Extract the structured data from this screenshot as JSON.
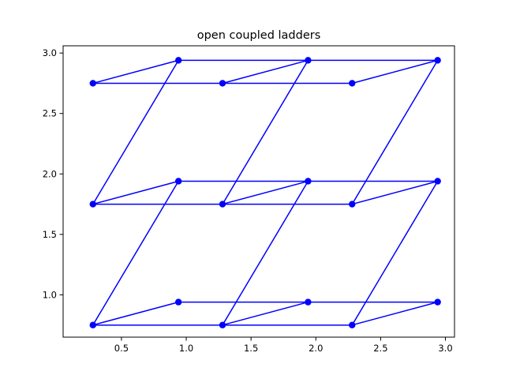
{
  "chart_data": {
    "type": "line",
    "title": "open coupled ladders",
    "xlabel": "",
    "ylabel": "",
    "xlim": [
      0.05,
      3.07
    ],
    "ylim": [
      0.65,
      3.06
    ],
    "xticks": [
      0.5,
      1.0,
      1.5,
      2.0,
      2.5,
      3.0
    ],
    "xtick_labels": [
      "0.5",
      "1.0",
      "1.5",
      "2.0",
      "2.5",
      "3.0"
    ],
    "yticks": [
      1.0,
      1.5,
      2.0,
      2.5,
      3.0
    ],
    "ytick_labels": [
      "1.0",
      "1.5",
      "2.0",
      "2.5",
      "3.0"
    ],
    "grid": false,
    "color": "#0000ff",
    "points": [
      {
        "x": 0.28,
        "y": 0.75
      },
      {
        "x": 1.28,
        "y": 0.75
      },
      {
        "x": 2.28,
        "y": 0.75
      },
      {
        "x": 0.28,
        "y": 1.75
      },
      {
        "x": 1.28,
        "y": 1.75
      },
      {
        "x": 2.28,
        "y": 1.75
      },
      {
        "x": 0.28,
        "y": 2.75
      },
      {
        "x": 1.28,
        "y": 2.75
      },
      {
        "x": 2.28,
        "y": 2.75
      },
      {
        "x": 0.94,
        "y": 0.94
      },
      {
        "x": 1.94,
        "y": 0.94
      },
      {
        "x": 2.94,
        "y": 0.94
      },
      {
        "x": 0.94,
        "y": 1.94
      },
      {
        "x": 1.94,
        "y": 1.94
      },
      {
        "x": 2.94,
        "y": 1.94
      },
      {
        "x": 0.94,
        "y": 2.94
      },
      {
        "x": 1.94,
        "y": 2.94
      },
      {
        "x": 2.94,
        "y": 2.94
      }
    ],
    "edges": [
      [
        0,
        1
      ],
      [
        1,
        2
      ],
      [
        3,
        4
      ],
      [
        4,
        5
      ],
      [
        6,
        7
      ],
      [
        7,
        8
      ],
      [
        9,
        10
      ],
      [
        10,
        11
      ],
      [
        12,
        13
      ],
      [
        13,
        14
      ],
      [
        15,
        16
      ],
      [
        16,
        17
      ],
      [
        0,
        9
      ],
      [
        1,
        10
      ],
      [
        2,
        11
      ],
      [
        3,
        12
      ],
      [
        4,
        13
      ],
      [
        5,
        14
      ],
      [
        6,
        15
      ],
      [
        7,
        16
      ],
      [
        8,
        17
      ],
      [
        0,
        12
      ],
      [
        1,
        13
      ],
      [
        2,
        14
      ],
      [
        3,
        15
      ],
      [
        4,
        16
      ],
      [
        5,
        17
      ]
    ]
  }
}
